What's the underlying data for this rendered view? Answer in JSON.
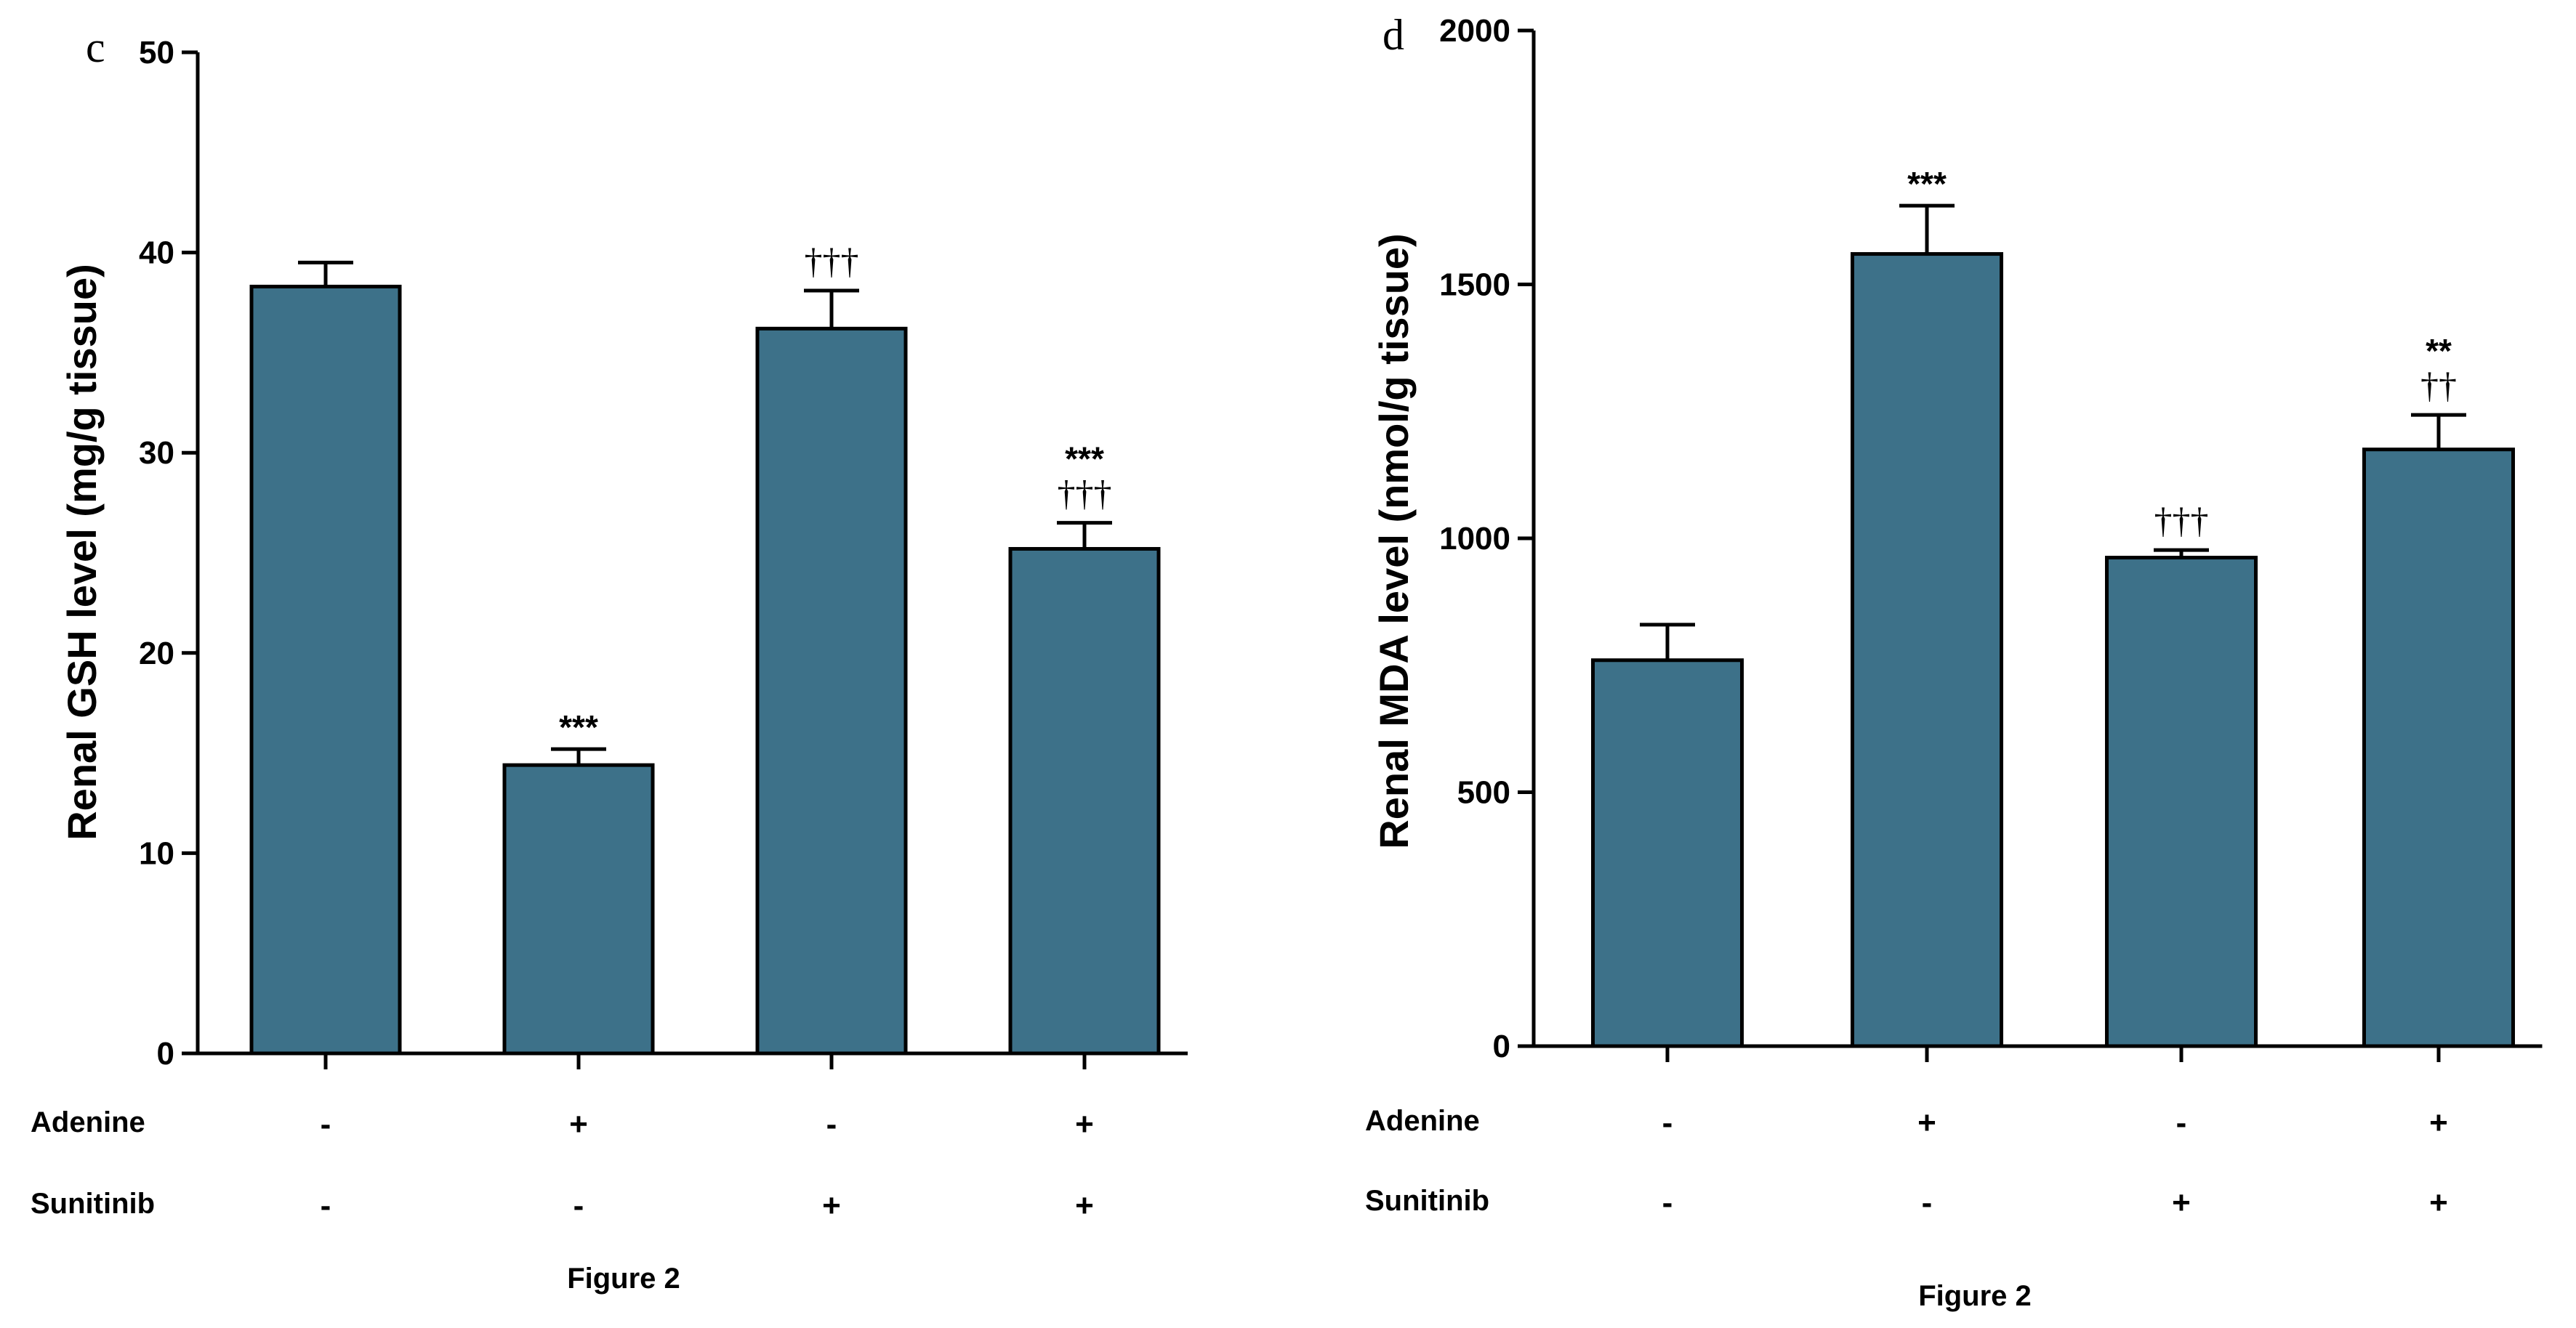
{
  "chart_data": [
    {
      "type": "bar",
      "panel_label": "c",
      "ylabel": "Renal GSH level (mg/g tissue)",
      "ylim": [
        0,
        50
      ],
      "yticks": [
        0,
        10,
        20,
        30,
        40,
        50
      ],
      "values": [
        38.3,
        14.4,
        36.2,
        25.2
      ],
      "errors": [
        1.2,
        0.8,
        1.9,
        1.3
      ],
      "annotations": [
        {
          "stars": "",
          "daggers": ""
        },
        {
          "stars": "***",
          "daggers": ""
        },
        {
          "stars": "",
          "daggers": "†††"
        },
        {
          "stars": "***",
          "daggers": "†††"
        }
      ],
      "rows": [
        {
          "label": "Adenine",
          "signs": [
            "-",
            "+",
            "-",
            "+"
          ]
        },
        {
          "label": "Sunitinib",
          "signs": [
            "-",
            "-",
            "+",
            "+"
          ]
        }
      ],
      "caption": "Figure 2",
      "bar_color": "#3D7189"
    },
    {
      "type": "bar",
      "panel_label": "d",
      "ylabel": "Renal MDA level (nmol/g tissue)",
      "ylim": [
        0,
        2000
      ],
      "yticks": [
        0,
        500,
        1000,
        1500,
        2000
      ],
      "values": [
        760,
        1560,
        962,
        1175
      ],
      "errors": [
        70,
        95,
        15,
        68
      ],
      "annotations": [
        {
          "stars": "",
          "daggers": ""
        },
        {
          "stars": "***",
          "daggers": ""
        },
        {
          "stars": "",
          "daggers": "†††"
        },
        {
          "stars": "**",
          "daggers": "††"
        }
      ],
      "rows": [
        {
          "label": "Adenine",
          "signs": [
            "-",
            "+",
            "-",
            "+"
          ]
        },
        {
          "label": "Sunitinib",
          "signs": [
            "-",
            "-",
            "+",
            "+"
          ]
        }
      ],
      "caption": "Figure 2",
      "bar_color": "#3D7189"
    }
  ]
}
